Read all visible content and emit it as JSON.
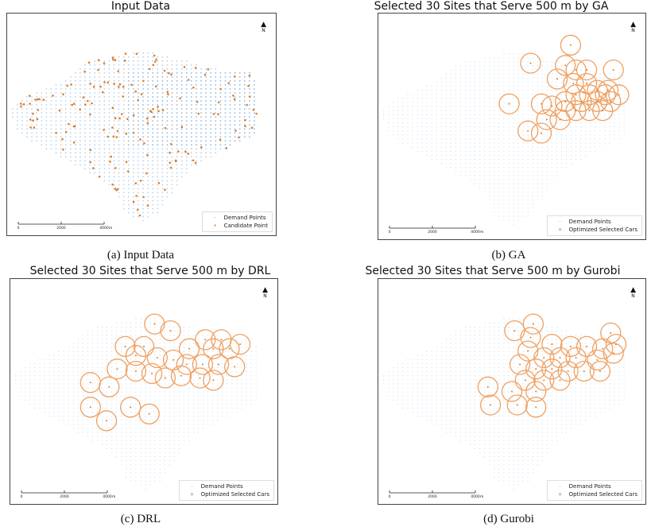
{
  "panels": [
    {
      "key": "a",
      "title": "Input Data",
      "caption": "(a) Input Data",
      "legend": [
        "Demand Points",
        "Candidate Point"
      ],
      "mode": "input"
    },
    {
      "key": "b",
      "title": "Selected 30 Sites that Serve 500 m by GA",
      "caption": "(b) GA",
      "legend": [
        "Demand Points",
        "Optimized Selected Cars"
      ],
      "mode": "circles"
    },
    {
      "key": "c",
      "title": "Selected 30 Sites that Serve 500 m by DRL",
      "caption": "(c) DRL",
      "legend": [
        "Demand Points",
        "Optimized Selected Cars"
      ],
      "mode": "circles"
    },
    {
      "key": "d",
      "title": "Selected 30 Sites that Serve 500 m by Gurobi",
      "caption": "(d) Gurobi",
      "legend": [
        "Demand Points",
        "Optimized Selected Cars"
      ],
      "mode": "circles"
    }
  ],
  "scale_bar": {
    "labels": [
      "0",
      "2000",
      "4000"
    ],
    "unit": "m"
  },
  "north_label": "N",
  "colors": {
    "demand": "#5b9bd5",
    "candidate": "#e07b20",
    "circle": "#f0a060",
    "frame": "#444444"
  },
  "sites": {
    "b": [
      [
        0.72,
        0.14
      ],
      [
        0.57,
        0.22
      ],
      [
        0.7,
        0.23
      ],
      [
        0.74,
        0.25
      ],
      [
        0.78,
        0.25
      ],
      [
        0.88,
        0.25
      ],
      [
        0.67,
        0.29
      ],
      [
        0.73,
        0.31
      ],
      [
        0.78,
        0.31
      ],
      [
        0.82,
        0.34
      ],
      [
        0.86,
        0.34
      ],
      [
        0.74,
        0.36
      ],
      [
        0.79,
        0.36
      ],
      [
        0.85,
        0.36
      ],
      [
        0.9,
        0.36
      ],
      [
        0.7,
        0.39
      ],
      [
        0.76,
        0.39
      ],
      [
        0.82,
        0.39
      ],
      [
        0.87,
        0.39
      ],
      [
        0.49,
        0.4
      ],
      [
        0.61,
        0.4
      ],
      [
        0.65,
        0.41
      ],
      [
        0.7,
        0.43
      ],
      [
        0.74,
        0.43
      ],
      [
        0.79,
        0.43
      ],
      [
        0.84,
        0.43
      ],
      [
        0.63,
        0.47
      ],
      [
        0.68,
        0.47
      ],
      [
        0.56,
        0.52
      ],
      [
        0.61,
        0.53
      ]
    ],
    "c": [
      [
        0.54,
        0.2
      ],
      [
        0.6,
        0.23
      ],
      [
        0.73,
        0.27
      ],
      [
        0.79,
        0.27
      ],
      [
        0.86,
        0.29
      ],
      [
        0.43,
        0.3
      ],
      [
        0.5,
        0.3
      ],
      [
        0.67,
        0.31
      ],
      [
        0.76,
        0.31
      ],
      [
        0.82,
        0.31
      ],
      [
        0.47,
        0.34
      ],
      [
        0.55,
        0.35
      ],
      [
        0.61,
        0.36
      ],
      [
        0.66,
        0.38
      ],
      [
        0.72,
        0.38
      ],
      [
        0.78,
        0.38
      ],
      [
        0.84,
        0.39
      ],
      [
        0.4,
        0.4
      ],
      [
        0.47,
        0.41
      ],
      [
        0.53,
        0.42
      ],
      [
        0.58,
        0.44
      ],
      [
        0.64,
        0.43
      ],
      [
        0.71,
        0.44
      ],
      [
        0.76,
        0.45
      ],
      [
        0.3,
        0.46
      ],
      [
        0.37,
        0.48
      ],
      [
        0.3,
        0.57
      ],
      [
        0.45,
        0.57
      ],
      [
        0.52,
        0.6
      ],
      [
        0.36,
        0.63
      ]
    ],
    "d": [
      [
        0.58,
        0.2
      ],
      [
        0.51,
        0.23
      ],
      [
        0.57,
        0.26
      ],
      [
        0.87,
        0.24
      ],
      [
        0.89,
        0.29
      ],
      [
        0.65,
        0.29
      ],
      [
        0.72,
        0.3
      ],
      [
        0.78,
        0.3
      ],
      [
        0.84,
        0.31
      ],
      [
        0.88,
        0.33
      ],
      [
        0.56,
        0.32
      ],
      [
        0.62,
        0.35
      ],
      [
        0.68,
        0.35
      ],
      [
        0.74,
        0.35
      ],
      [
        0.82,
        0.36
      ],
      [
        0.53,
        0.38
      ],
      [
        0.59,
        0.4
      ],
      [
        0.65,
        0.4
      ],
      [
        0.71,
        0.41
      ],
      [
        0.77,
        0.41
      ],
      [
        0.83,
        0.41
      ],
      [
        0.55,
        0.45
      ],
      [
        0.62,
        0.45
      ],
      [
        0.68,
        0.45
      ],
      [
        0.5,
        0.5
      ],
      [
        0.59,
        0.5
      ],
      [
        0.41,
        0.48
      ],
      [
        0.52,
        0.56
      ],
      [
        0.59,
        0.57
      ],
      [
        0.42,
        0.56
      ]
    ]
  }
}
